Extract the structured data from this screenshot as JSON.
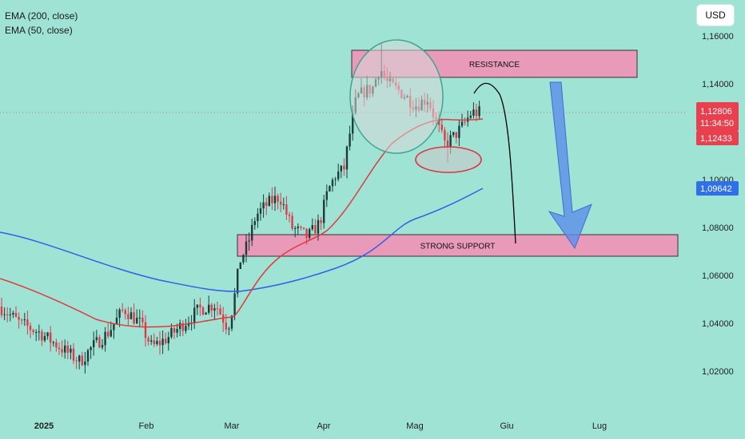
{
  "legend": {
    "ema200": "EMA (200, close)",
    "ema50": "EMA (50, close)"
  },
  "currency": "USD",
  "colors": {
    "background": "#9fe3d5",
    "candle_up": "#1d3c3a",
    "candle_down": "#e03a4a",
    "ema200": "#2f5fe8",
    "ema50": "#e23a3a",
    "zone_fill": "#e89ab8",
    "arrow": "#5b8de8",
    "price_label": "#e8404e",
    "ema200_label": "#2f6fe8"
  },
  "annotations": {
    "resistance_label": "RESISTANCE",
    "support_label": "STRONG SUPPORT"
  },
  "price_labels": {
    "last_price": "1,12806",
    "countdown": "11:34:50",
    "ema50_value": "1,12433",
    "ema200_value": "1,09642"
  },
  "chart_data": {
    "type": "candlestick",
    "title": "",
    "y_axis": {
      "ticks": [
        "1,16000",
        "1,14000",
        "1,12000",
        "1,10000",
        "1,08000",
        "1,06000",
        "1,04000",
        "1,02000"
      ],
      "tick_values": [
        1.16,
        1.14,
        1.12,
        1.1,
        1.08,
        1.06,
        1.04,
        1.02
      ],
      "ylim": [
        1.0088,
        1.1705
      ]
    },
    "x_axis": {
      "labels": [
        "2025",
        "Feb",
        "Mar",
        "Apr",
        "Mag",
        "Giu",
        "Lug"
      ]
    },
    "zones": [
      {
        "name": "resistance",
        "low": 1.1427,
        "high": 1.154
      },
      {
        "name": "strong support",
        "low": 1.068,
        "high": 1.077
      }
    ],
    "series": [
      {
        "name": "EMA (200, close)",
        "last_value": 1.09642
      },
      {
        "name": "EMA (50, close)",
        "last_value": 1.12433
      }
    ],
    "last_price": 1.12806
  }
}
